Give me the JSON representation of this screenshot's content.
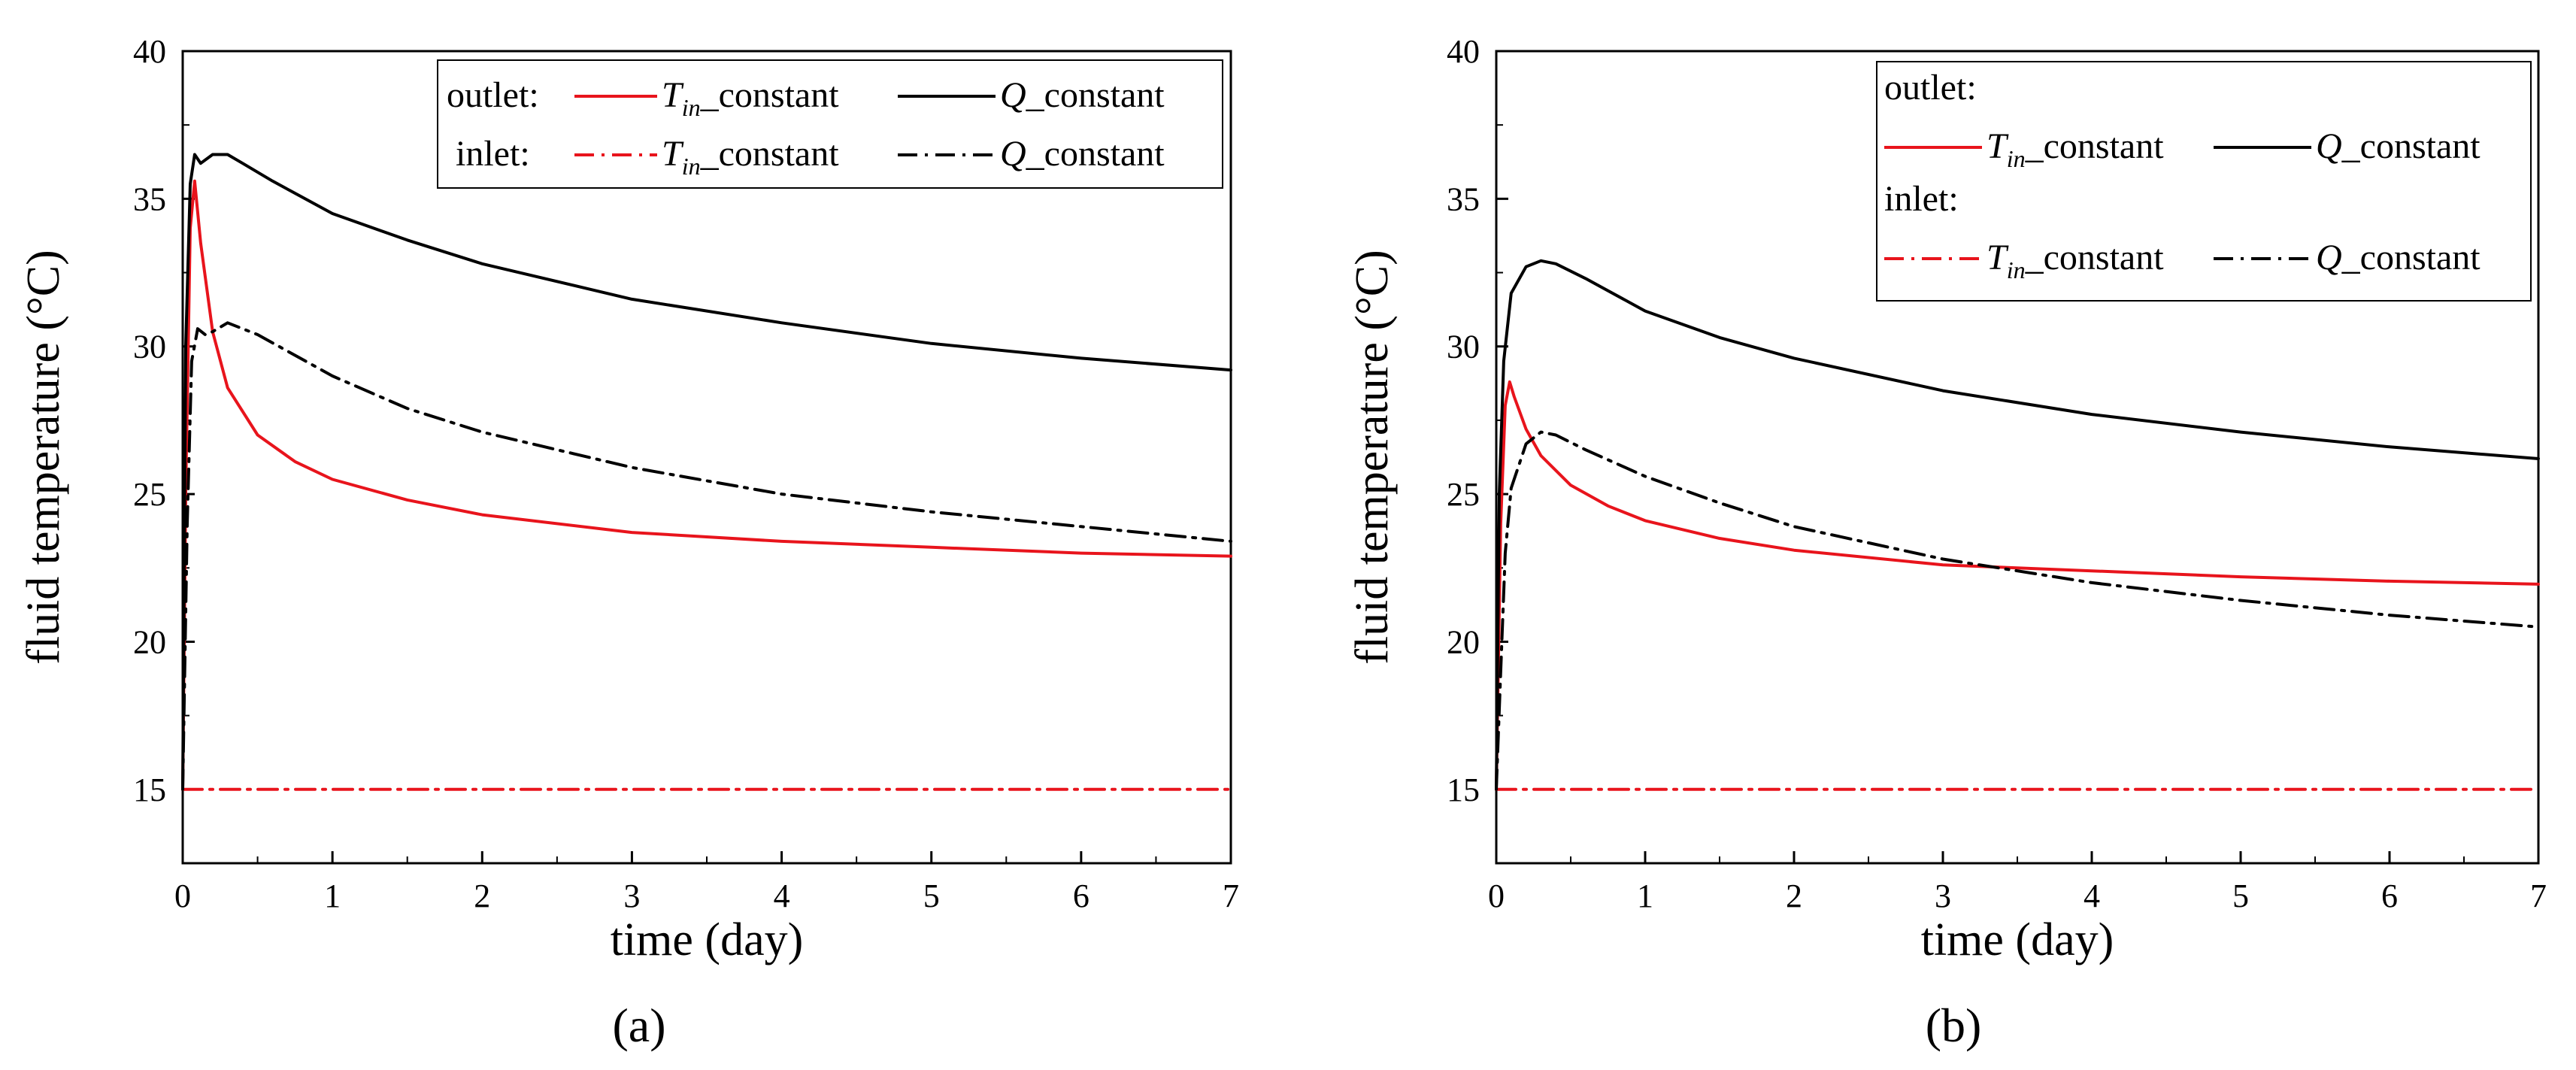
{
  "chart_data": [
    {
      "type": "line",
      "panel_label": "(a)",
      "xlabel": "time (day)",
      "ylabel": "fluid temperature (°C)",
      "xlim": [
        0,
        7
      ],
      "ylim": [
        12.5,
        40
      ],
      "xticks": [
        0,
        1,
        2,
        3,
        4,
        5,
        6,
        7
      ],
      "yticks": [
        15,
        20,
        25,
        30,
        35,
        40
      ],
      "grid": false,
      "legend": {
        "placement": "top-right",
        "layout": "inline",
        "groups": [
          {
            "label": "outlet:",
            "entries": [
              {
                "series": "outlet_Tin",
                "main": "T",
                "sub": "in",
                "text": "_constant"
              },
              {
                "series": "outlet_Q",
                "main": "Q",
                "sub": "",
                "text": "_constant"
              }
            ]
          },
          {
            "label": "inlet:",
            "entries": [
              {
                "series": "inlet_Tin",
                "main": "T",
                "sub": "in",
                "text": "_constant"
              },
              {
                "series": "inlet_Q",
                "main": "Q",
                "sub": "",
                "text": "_constant"
              }
            ]
          }
        ]
      },
      "series": [
        {
          "id": "outlet_Tin",
          "name": "outlet: T_in_constant",
          "color": "#e8141c",
          "dash": "solid",
          "x": [
            0,
            0.02,
            0.05,
            0.08,
            0.12,
            0.2,
            0.3,
            0.5,
            0.75,
            1,
            1.5,
            2,
            3,
            4,
            5,
            6,
            7
          ],
          "y": [
            15,
            25,
            34,
            35.6,
            33.5,
            30.5,
            28.6,
            27,
            26.1,
            25.5,
            24.8,
            24.3,
            23.7,
            23.4,
            23.2,
            23.0,
            22.9
          ]
        },
        {
          "id": "outlet_Q",
          "name": "outlet: Q_constant",
          "color": "#000000",
          "dash": "solid",
          "x": [
            0,
            0.02,
            0.05,
            0.08,
            0.12,
            0.2,
            0.3,
            0.4,
            0.6,
            1,
            1.5,
            2,
            3,
            4,
            5,
            6,
            7
          ],
          "y": [
            15,
            30,
            35.5,
            36.5,
            36.2,
            36.5,
            36.5,
            36.2,
            35.6,
            34.5,
            33.6,
            32.8,
            31.6,
            30.8,
            30.1,
            29.6,
            29.2
          ]
        },
        {
          "id": "inlet_Tin",
          "name": "inlet: T_in_constant",
          "color": "#e8141c",
          "dash": "dashdot",
          "x": [
            0,
            7
          ],
          "y": [
            15,
            15
          ]
        },
        {
          "id": "inlet_Q",
          "name": "inlet: Q_constant",
          "color": "#000000",
          "dash": "dashdot",
          "x": [
            0,
            0.03,
            0.06,
            0.1,
            0.15,
            0.2,
            0.3,
            0.5,
            1,
            1.5,
            2,
            3,
            4,
            5,
            6,
            7
          ],
          "y": [
            15,
            24,
            29.5,
            30.6,
            30.4,
            30.5,
            30.8,
            30.4,
            29.0,
            27.9,
            27.1,
            25.9,
            25.0,
            24.4,
            23.9,
            23.4
          ]
        }
      ]
    },
    {
      "type": "line",
      "panel_label": "(b)",
      "xlabel": "time (day)",
      "ylabel": "fluid temperature (°C)",
      "xlim": [
        0,
        7
      ],
      "ylim": [
        12.5,
        40
      ],
      "xticks": [
        0,
        1,
        2,
        3,
        4,
        5,
        6,
        7
      ],
      "yticks": [
        15,
        20,
        25,
        30,
        35,
        40
      ],
      "grid": false,
      "legend": {
        "placement": "top-right",
        "layout": "stacked",
        "groups": [
          {
            "label": "outlet:",
            "entries": [
              {
                "series": "outlet_Tin",
                "main": "T",
                "sub": "in",
                "text": "_constant"
              },
              {
                "series": "outlet_Q",
                "main": "Q",
                "sub": "",
                "text": "_constant"
              }
            ]
          },
          {
            "label": "inlet:",
            "entries": [
              {
                "series": "inlet_Tin",
                "main": "T",
                "sub": "in",
                "text": "_constant"
              },
              {
                "series": "inlet_Q",
                "main": "Q",
                "sub": "",
                "text": "_constant"
              }
            ]
          }
        ]
      },
      "series": [
        {
          "id": "outlet_Tin",
          "name": "outlet: T_in_constant",
          "color": "#e8141c",
          "dash": "solid",
          "x": [
            0,
            0.03,
            0.06,
            0.09,
            0.12,
            0.2,
            0.3,
            0.5,
            0.75,
            1,
            1.5,
            2,
            3,
            4,
            5,
            6,
            7
          ],
          "y": [
            15,
            24,
            28,
            28.8,
            28.3,
            27.2,
            26.3,
            25.3,
            24.6,
            24.1,
            23.5,
            23.1,
            22.6,
            22.4,
            22.2,
            22.05,
            21.95
          ]
        },
        {
          "id": "outlet_Q",
          "name": "outlet: Q_constant",
          "color": "#000000",
          "dash": "solid",
          "x": [
            0,
            0.02,
            0.05,
            0.1,
            0.2,
            0.3,
            0.4,
            0.6,
            1,
            1.5,
            2,
            3,
            4,
            5,
            6,
            7
          ],
          "y": [
            15,
            25,
            29.5,
            31.8,
            32.7,
            32.9,
            32.8,
            32.3,
            31.2,
            30.3,
            29.6,
            28.5,
            27.7,
            27.1,
            26.6,
            26.2
          ]
        },
        {
          "id": "inlet_Tin",
          "name": "inlet: T_in_constant",
          "color": "#e8141c",
          "dash": "dashdot",
          "x": [
            0,
            7
          ],
          "y": [
            15,
            15
          ]
        },
        {
          "id": "inlet_Q",
          "name": "inlet: Q_constant",
          "color": "#000000",
          "dash": "dashdot",
          "x": [
            0,
            0.03,
            0.06,
            0.1,
            0.2,
            0.3,
            0.4,
            0.6,
            1,
            1.5,
            2,
            3,
            4,
            5,
            6,
            7
          ],
          "y": [
            15,
            19,
            23,
            25.2,
            26.7,
            27.1,
            27.0,
            26.5,
            25.6,
            24.7,
            23.9,
            22.8,
            22.0,
            21.4,
            20.9,
            20.5
          ]
        }
      ]
    }
  ]
}
